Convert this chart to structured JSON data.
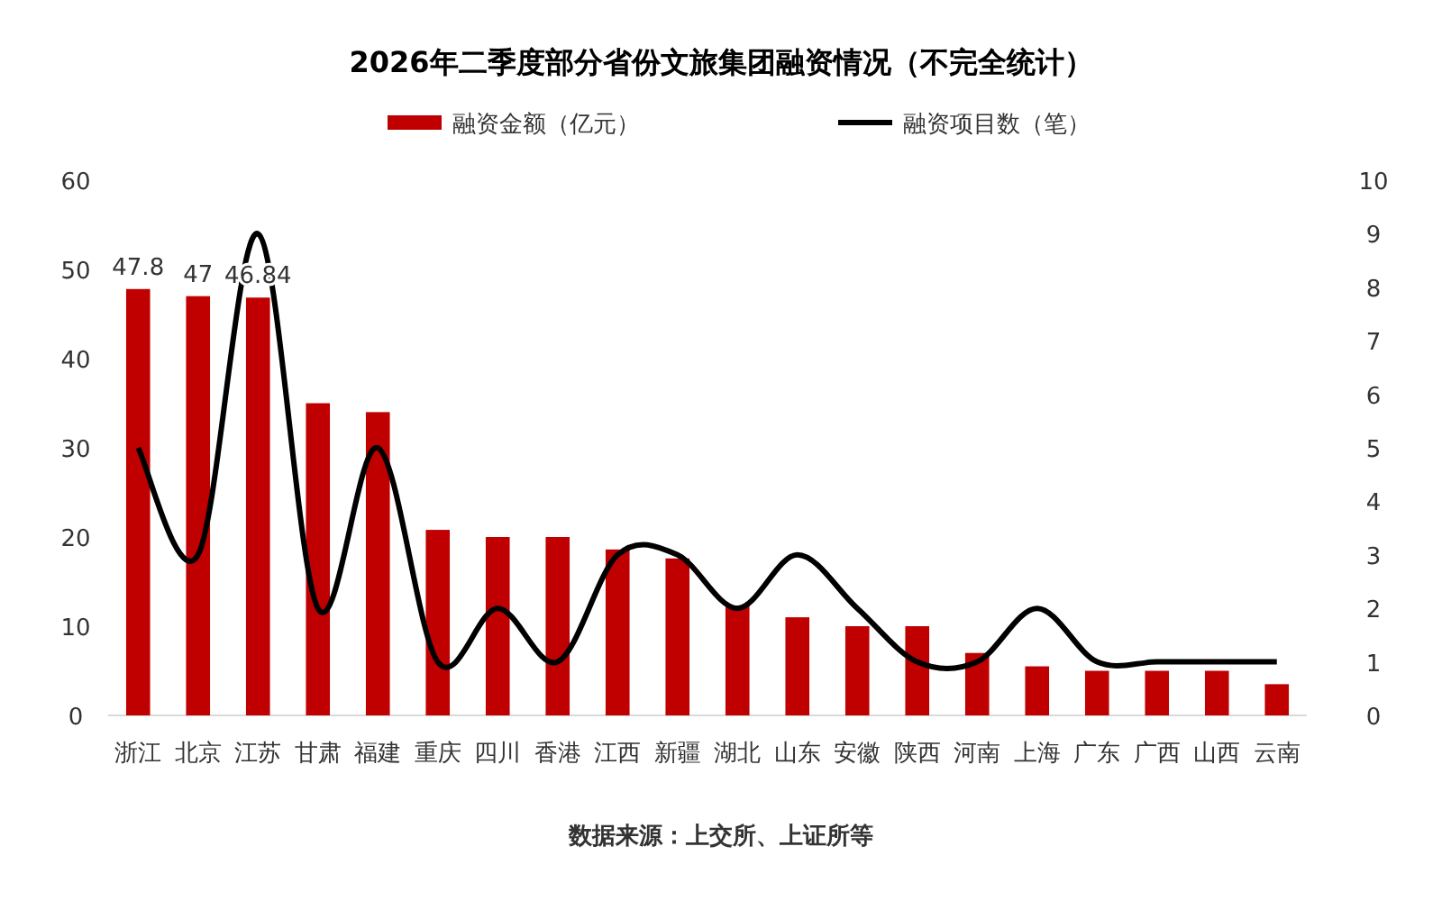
{
  "chart_data": {
    "type": "bar",
    "title": "2026年二季度部分省份文旅集团融资情况（不完全统计）",
    "categories": [
      "浙江",
      "北京",
      "江苏",
      "甘肃",
      "福建",
      "重庆",
      "四川",
      "香港",
      "江西",
      "新疆",
      "湖北",
      "山东",
      "安徽",
      "陕西",
      "河南",
      "上海",
      "广东",
      "广西",
      "山西",
      "云南"
    ],
    "series": [
      {
        "name": "融资金额（亿元）",
        "color": "#c00000",
        "values": [
          47.8,
          47,
          46.84,
          35,
          34,
          20.8,
          20,
          20,
          18.6,
          17.6,
          12.3,
          11,
          10,
          10,
          7,
          5.5,
          5,
          5,
          5,
          3.5
        ],
        "value_labels": [
          "47.8",
          "47",
          "46.84",
          null,
          null,
          null,
          null,
          null,
          null,
          null,
          null,
          null,
          null,
          null,
          null,
          null,
          null,
          null,
          null,
          null
        ]
      },
      {
        "name": "融资项目数（笔）",
        "type": "line",
        "axis": "y2",
        "color": "#000000",
        "values": [
          5,
          3,
          9,
          2,
          5,
          1,
          2,
          1,
          3,
          3,
          2,
          3,
          2,
          1,
          1,
          2,
          1,
          1,
          1,
          1
        ]
      }
    ],
    "ylim": [
      0,
      60
    ],
    "yticks": [
      0,
      10,
      20,
      30,
      40,
      50,
      60
    ],
    "y2lim": [
      0,
      10
    ],
    "y2ticks": [
      0,
      1,
      2,
      3,
      4,
      5,
      6,
      7,
      8,
      9,
      10
    ],
    "legend": "top",
    "grid": false,
    "marker": "none",
    "annotations": [
      "数据来源：上交所、上证所等"
    ]
  }
}
